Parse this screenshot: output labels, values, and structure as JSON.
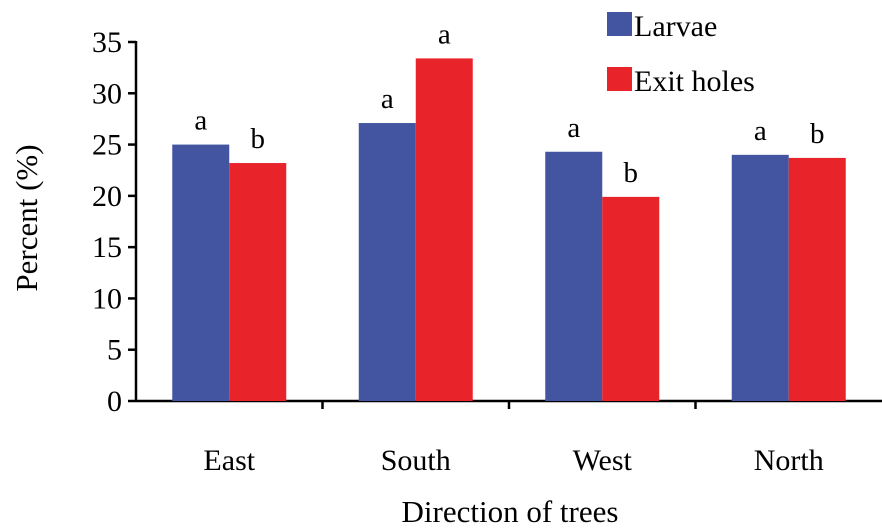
{
  "chart_data": {
    "type": "bar",
    "categories": [
      "East",
      "South",
      "West",
      "North"
    ],
    "series": [
      {
        "name": "Larvae",
        "color": "#4355a0",
        "values": [
          25.0,
          27.1,
          24.3,
          24.0
        ],
        "labels": [
          "a",
          "a",
          "a",
          "a"
        ]
      },
      {
        "name": "Exit holes",
        "color": "#e8232a",
        "values": [
          23.2,
          33.4,
          19.9,
          23.7
        ],
        "labels": [
          "b",
          "a",
          "b",
          "b"
        ]
      }
    ],
    "xlabel": "Direction of trees",
    "ylabel": "Percent (%)",
    "ylim": [
      0,
      35
    ],
    "yticks": [
      "0",
      "5",
      "10",
      "15",
      "20",
      "25",
      "30",
      "35"
    ],
    "grid": false,
    "legend": "top-right"
  }
}
